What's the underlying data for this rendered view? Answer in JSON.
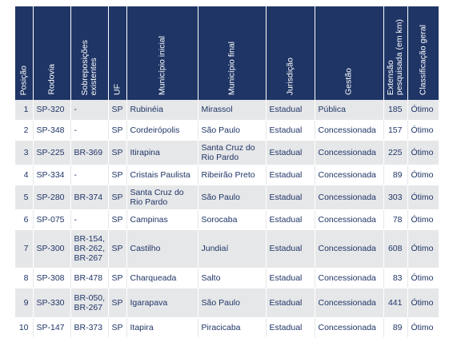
{
  "headers": {
    "posicao": "Posição",
    "rodovia": "Rodovia",
    "sobreposicoes_l1": "Sobreposições",
    "sobreposicoes_l2": "existentes",
    "uf": "UF",
    "municipio_inicial": "Município inicial",
    "municipio_final": "Município final",
    "jurisdicao": "Jurisdição",
    "gestao": "Gestão",
    "extensao_l1": "Extensão",
    "extensao_l2": "pesquisada (em km)",
    "classificacao": "Classificação geral"
  },
  "rows": [
    {
      "posicao": "1",
      "rodovia": "SP-320",
      "sobreposicoes": [
        "-"
      ],
      "uf": "SP",
      "municipio_inicial": [
        "Rubinéia"
      ],
      "municipio_final": [
        "Mirassol"
      ],
      "jurisdicao": "Estadual",
      "gestao": "Pública",
      "extensao": "185",
      "classificacao": "Ótimo"
    },
    {
      "posicao": "2",
      "rodovia": "SP-348",
      "sobreposicoes": [
        "-"
      ],
      "uf": "SP",
      "municipio_inicial": [
        "Cordeirópolis"
      ],
      "municipio_final": [
        "São Paulo"
      ],
      "jurisdicao": "Estadual",
      "gestao": "Concessionada",
      "extensao": "157",
      "classificacao": "Ótimo"
    },
    {
      "posicao": "3",
      "rodovia": "SP-225",
      "sobreposicoes": [
        "BR-369"
      ],
      "uf": "SP",
      "municipio_inicial": [
        "Itirapina"
      ],
      "municipio_final": [
        "Santa Cruz do",
        "Rio Pardo"
      ],
      "jurisdicao": "Estadual",
      "gestao": "Concessionada",
      "extensao": "225",
      "classificacao": "Ótimo"
    },
    {
      "posicao": "4",
      "rodovia": "SP-334",
      "sobreposicoes": [
        "-"
      ],
      "uf": "SP",
      "municipio_inicial": [
        "Cristais Paulista"
      ],
      "municipio_final": [
        "Ribeirão Preto"
      ],
      "jurisdicao": "Estadual",
      "gestao": "Concessionada",
      "extensao": "89",
      "classificacao": "Ótimo"
    },
    {
      "posicao": "5",
      "rodovia": "SP-280",
      "sobreposicoes": [
        "BR-374"
      ],
      "uf": "SP",
      "municipio_inicial": [
        "Santa Cruz do",
        "Rio Pardo"
      ],
      "municipio_final": [
        "São Paulo"
      ],
      "jurisdicao": "Estadual",
      "gestao": "Concessionada",
      "extensao": "303",
      "classificacao": "Ótimo"
    },
    {
      "posicao": "6",
      "rodovia": "SP-075",
      "sobreposicoes": [
        "-"
      ],
      "uf": "SP",
      "municipio_inicial": [
        "Campinas"
      ],
      "municipio_final": [
        "Sorocaba"
      ],
      "jurisdicao": "Estadual",
      "gestao": "Concessionada",
      "extensao": "78",
      "classificacao": "Ótimo"
    },
    {
      "posicao": "7",
      "rodovia": "SP-300",
      "sobreposicoes": [
        "BR-154,",
        "BR-262,",
        "BR-267"
      ],
      "uf": "SP",
      "municipio_inicial": [
        "Castilho"
      ],
      "municipio_final": [
        "Jundiaí"
      ],
      "jurisdicao": "Estadual",
      "gestao": "Concessionada",
      "extensao": "608",
      "classificacao": "Ótimo"
    },
    {
      "posicao": "8",
      "rodovia": "SP-308",
      "sobreposicoes": [
        "BR-478"
      ],
      "uf": "SP",
      "municipio_inicial": [
        "Charqueada"
      ],
      "municipio_final": [
        "Salto"
      ],
      "jurisdicao": "Estadual",
      "gestao": "Concessionada",
      "extensao": "83",
      "classificacao": "Ótimo"
    },
    {
      "posicao": "9",
      "rodovia": "SP-330",
      "sobreposicoes": [
        "BR-050,",
        "BR-267"
      ],
      "uf": "SP",
      "municipio_inicial": [
        "Igarapava"
      ],
      "municipio_final": [
        "São Paulo"
      ],
      "jurisdicao": "Estadual",
      "gestao": "Concessionada",
      "extensao": "441",
      "classificacao": "Ótimo"
    },
    {
      "posicao": "10",
      "rodovia": "SP-147",
      "sobreposicoes": [
        "BR-373"
      ],
      "uf": "SP",
      "municipio_inicial": [
        "Itapira"
      ],
      "municipio_final": [
        "Piracicaba"
      ],
      "jurisdicao": "Estadual",
      "gestao": "Concessionada",
      "extensao": "89",
      "classificacao": "Ótimo"
    }
  ],
  "colors": {
    "header_bg": "#1f3566",
    "row_alt_bg": "#e6e7e9",
    "text": "#1f3566"
  }
}
